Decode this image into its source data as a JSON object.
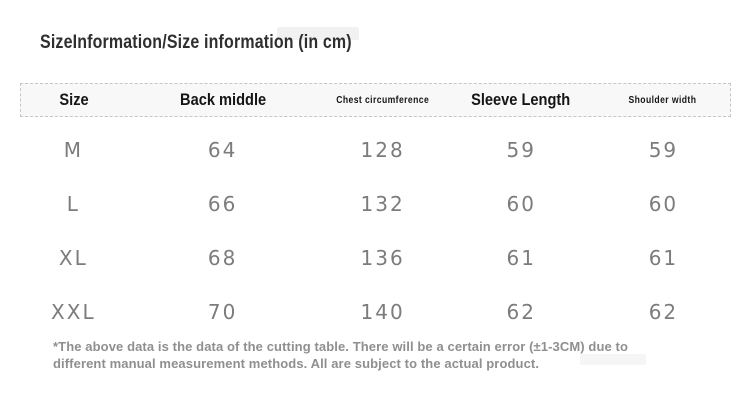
{
  "title": {
    "text": "SizeInformation/Size information (in cm)"
  },
  "table": {
    "columns": [
      {
        "label": "Size"
      },
      {
        "label": "Back middle"
      },
      {
        "label": "Chest circumference"
      },
      {
        "label": "Sleeve Length"
      },
      {
        "label": "Shoulder width"
      }
    ],
    "rows": [
      [
        "M",
        "64",
        "128",
        "59",
        "59"
      ],
      [
        "L",
        "66",
        "132",
        "60",
        "60"
      ],
      [
        "XL",
        "68",
        "136",
        "61",
        "61"
      ],
      [
        "XXL",
        "70",
        "140",
        "62",
        "62"
      ]
    ],
    "style": {
      "header_bg": "#f8f8f8",
      "dashed_border": "#c6c6c6",
      "header_text": "#151515",
      "data_text": "#7c7c7c"
    }
  },
  "footer": {
    "lines": [
      "*The above data is the data of the cutting table. There will be a certain error (±1-3CM) due to",
      "different manual measurement methods. All are subject to the actual product."
    ]
  }
}
